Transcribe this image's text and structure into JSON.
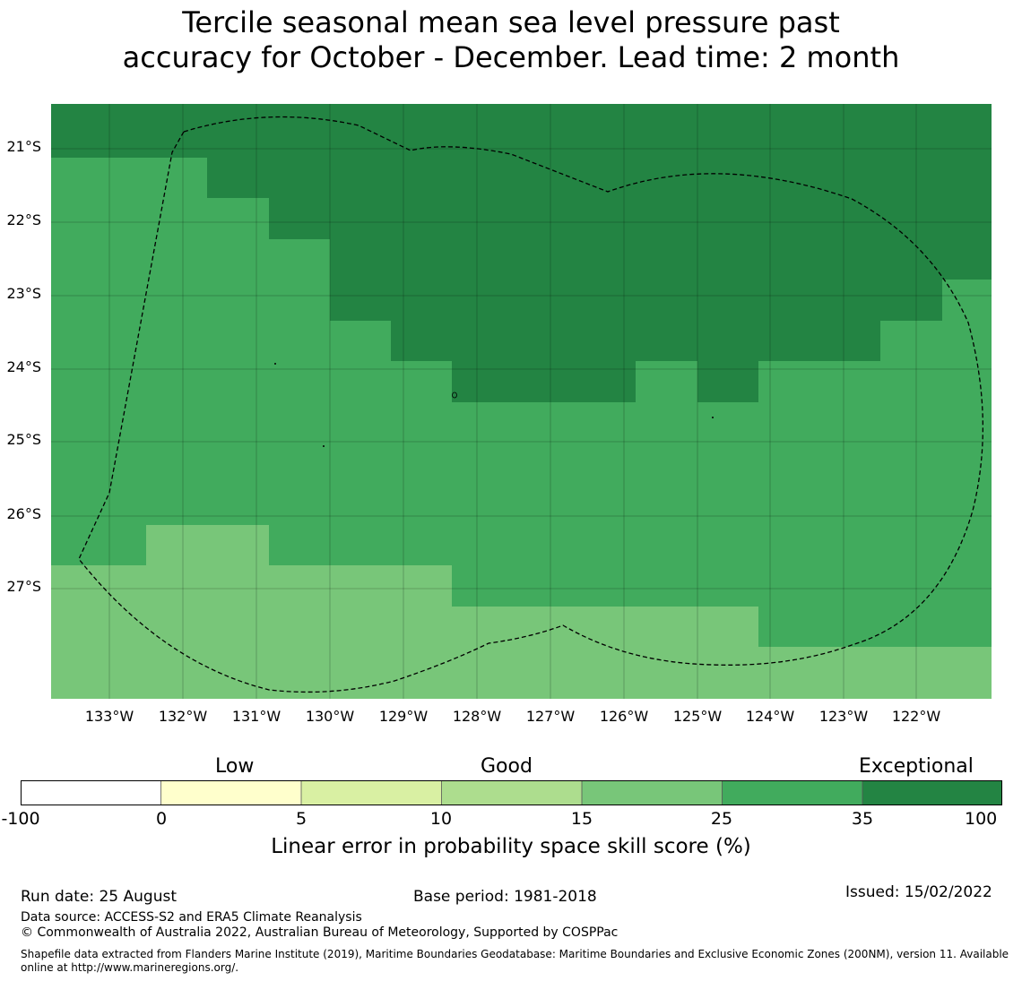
{
  "title_line1": "Tercile seasonal mean sea level pressure past",
  "title_line2": "accuracy for October - December. Lead time: 2 month",
  "lat_labels": [
    "21°S",
    "22°S",
    "23°S",
    "24°S",
    "25°S",
    "26°S",
    "27°S"
  ],
  "lon_labels": [
    "133°W",
    "132°W",
    "131°W",
    "130°W",
    "129°W",
    "128°W",
    "127°W",
    "126°W",
    "125°W",
    "124°W",
    "123°W",
    "122°W"
  ],
  "colorbar": {
    "categories": [
      "Low",
      "Good",
      "Exceptional"
    ],
    "ticks": [
      "-100",
      "0",
      "5",
      "10",
      "15",
      "25",
      "35",
      "100"
    ],
    "colors": [
      "#ffffff",
      "#ffffcc",
      "#d9f0a3",
      "#addd8e",
      "#78c679",
      "#41ab5d",
      "#238443"
    ],
    "title": "Linear error in probability space skill score (%)"
  },
  "map_colors": {
    "exceptional": "#238443",
    "good_high": "#41ab5d",
    "good": "#78c679"
  },
  "footer": {
    "run_date": "Run date: 25 August",
    "base_period": "Base period: 1981-2018",
    "issued": "Issued: 15/02/2022",
    "data_source": "Data source: ACCESS-S2 and ERA5 Climate Reanalysis",
    "copyright": "© Commonwealth of Australia 2022, Australian Bureau of Meteorology, Supported by COSPPac",
    "shapefile_line1": "Shapefile data extracted from Flanders Marine Institute (2019), Maritime Boundaries Geodatabase: Maritime Boundaries and Exclusive Economic Zones (200NM), version 11. Available",
    "shapefile_line2": "online at http://www.marineregions.org/."
  }
}
